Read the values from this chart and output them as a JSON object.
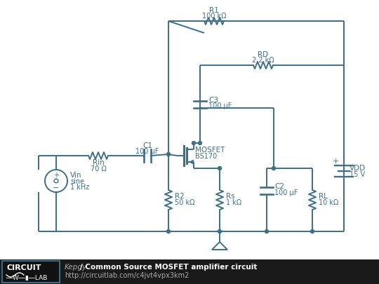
{
  "bg_color": "#ffffff",
  "circuit_color": "#4a7fa5",
  "footer_bg": "#1a1a1a",
  "cc": "#3d6e8a",
  "components": {
    "R1": "R1\n100 kΩ",
    "RD": "RD\n2.2 kΩ",
    "C3": "C3\n100 μF",
    "C1": "C1\n100 μF",
    "C2": "C2\n100 μF",
    "R2": "R2\n50 kΩ",
    "Rs": "Rs\n1 kΩ",
    "RL": "RL\n10 kΩ",
    "Rin": "Rin\n70 Ω",
    "VDD": "VDD\n15 V",
    "Vin_label": "Vin\nsine\n1 kHz",
    "MOSFET": "MOSFET\nBS170"
  },
  "footer_title": "Common Source MOSFET amplifier circuit",
  "footer_url": "http://circuitlab.com/c4jvt4vpx3km2",
  "footer_author": "Kepgy"
}
